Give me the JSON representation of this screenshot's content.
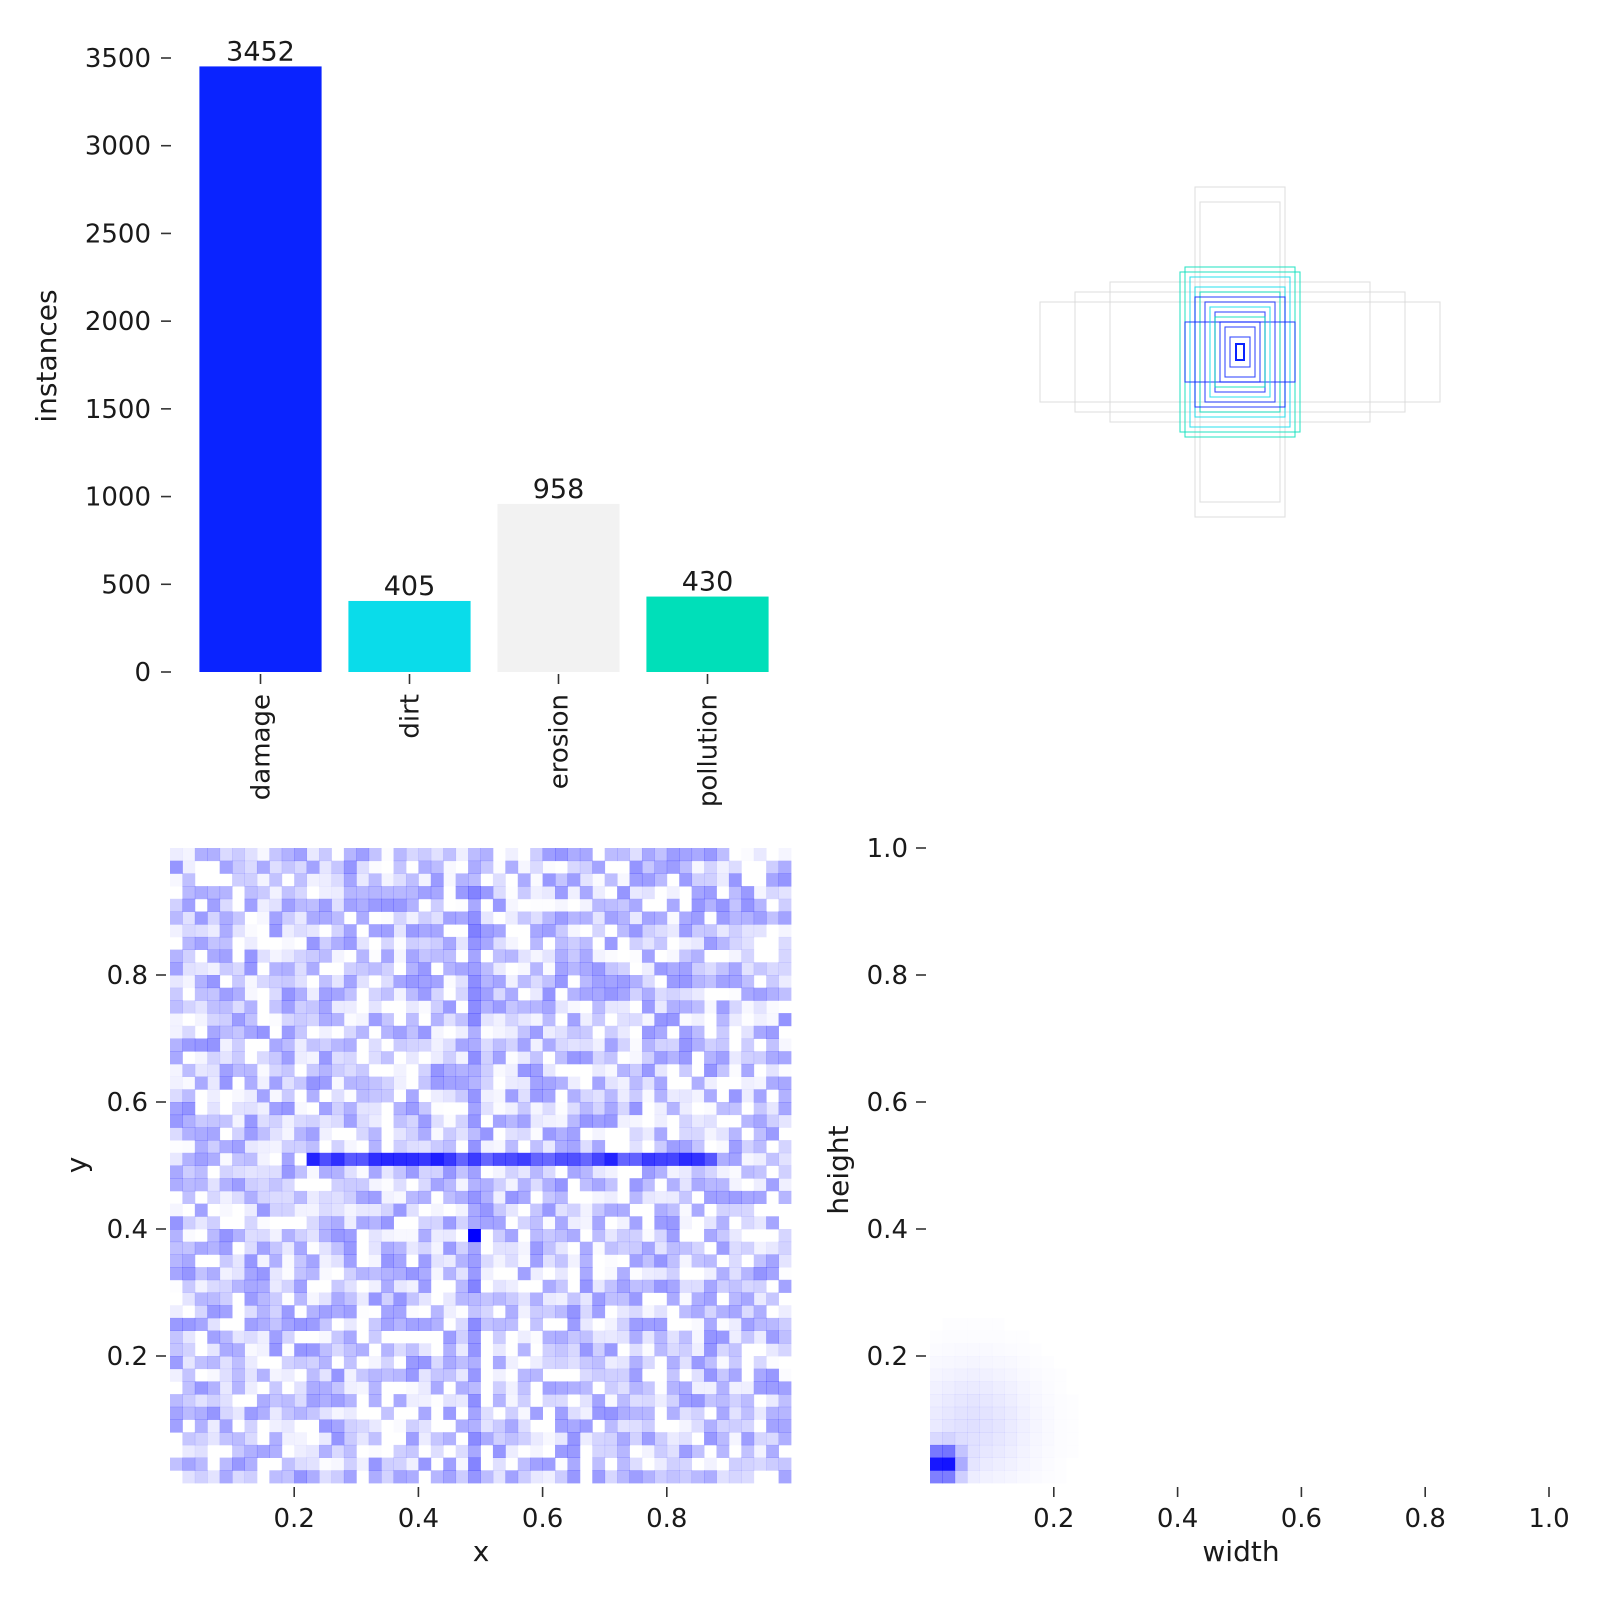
{
  "chart_data": [
    {
      "type": "bar",
      "categories": [
        "damage",
        "dirt",
        "erosion",
        "pollution"
      ],
      "values": [
        3452,
        405,
        958,
        430
      ],
      "data_labels": [
        "3452",
        "405",
        "958",
        "430"
      ],
      "colors": [
        "#0a23ff",
        "#0adcea",
        "#f2f2f2",
        "#00dfb9"
      ],
      "ylabel": "instances",
      "ylim": [
        0,
        3500
      ],
      "yticks": [
        0,
        500,
        1000,
        1500,
        2000,
        2500,
        3000,
        3500
      ],
      "ytick_labels": [
        "0",
        "500",
        "1000",
        "1500",
        "2000",
        "2500",
        "3000",
        "3500"
      ],
      "grid": false
    },
    {
      "type": "diagram",
      "description_kind": "overlaid bounding boxes centered at image center",
      "colors": [
        "#0a23ff",
        "#0adcea",
        "#f2f2f2",
        "#00dfb9"
      ],
      "boxes": [
        {
          "w": 0.4,
          "h": 0.1,
          "class": "erosion"
        },
        {
          "w": 0.33,
          "h": 0.12,
          "class": "erosion"
        },
        {
          "w": 0.26,
          "h": 0.14,
          "class": "erosion"
        },
        {
          "w": 0.09,
          "h": 0.33,
          "class": "erosion"
        },
        {
          "w": 0.08,
          "h": 0.3,
          "class": "erosion"
        },
        {
          "w": 0.12,
          "h": 0.16,
          "class": "pollution"
        },
        {
          "w": 0.11,
          "h": 0.17,
          "class": "pollution"
        },
        {
          "w": 0.1,
          "h": 0.15,
          "class": "dirt"
        },
        {
          "w": 0.09,
          "h": 0.13,
          "class": "dirt"
        },
        {
          "w": 0.08,
          "h": 0.12,
          "class": "pollution"
        },
        {
          "w": 0.09,
          "h": 0.11,
          "class": "damage"
        },
        {
          "w": 0.07,
          "h": 0.1,
          "class": "damage"
        },
        {
          "w": 0.11,
          "h": 0.06,
          "class": "damage"
        },
        {
          "w": 0.05,
          "h": 0.08,
          "class": "damage"
        },
        {
          "w": 0.04,
          "h": 0.06,
          "class": "damage"
        },
        {
          "w": 0.03,
          "h": 0.05,
          "class": "damage"
        },
        {
          "w": 0.02,
          "h": 0.03,
          "class": "damage"
        },
        {
          "w": 0.06,
          "h": 0.09,
          "class": "dirt"
        },
        {
          "w": 0.05,
          "h": 0.07,
          "class": "pollution"
        }
      ]
    },
    {
      "type": "heatmap",
      "xlabel": "x",
      "ylabel": "y",
      "xlim": [
        0,
        1
      ],
      "ylim": [
        0,
        1
      ],
      "xticks": [
        0.2,
        0.4,
        0.6,
        0.8
      ],
      "xtick_labels": [
        "0.2",
        "0.4",
        "0.6",
        "0.8"
      ],
      "yticks": [
        0.2,
        0.4,
        0.6,
        0.8
      ],
      "ytick_labels": [
        "0.2",
        "0.4",
        "0.6",
        "0.8"
      ],
      "bins": 50,
      "color": "#0000ff",
      "features": [
        {
          "kind": "horizontal-line",
          "y": 0.51,
          "x_from": 0.22,
          "x_to": 0.88,
          "intensity": 0.9
        },
        {
          "kind": "vertical-line",
          "x": 0.49,
          "y_from": 0.0,
          "y_to": 1.0,
          "intensity": 0.5
        },
        {
          "kind": "hotspot",
          "x": 0.49,
          "y": 0.39,
          "intensity": 1.0
        }
      ]
    },
    {
      "type": "heatmap",
      "xlabel": "width",
      "ylabel": "height",
      "xlim": [
        0,
        1
      ],
      "ylim": [
        0,
        1
      ],
      "xticks": [
        0.2,
        0.4,
        0.6,
        0.8,
        1.0
      ],
      "xtick_labels": [
        "0.2",
        "0.4",
        "0.6",
        "0.8",
        "1.0"
      ],
      "yticks": [
        0.2,
        0.4,
        0.6,
        0.8,
        1.0
      ],
      "ytick_labels": [
        "0.2",
        "0.4",
        "0.6",
        "0.8",
        "1.0"
      ],
      "bins": 50,
      "color": "#0000ff",
      "features": [
        {
          "kind": "hotspot",
          "x": 0.02,
          "y": 0.03,
          "intensity": 1.0
        },
        {
          "kind": "diffuse",
          "x": 0.07,
          "y": 0.09,
          "intensity": 0.12
        }
      ]
    }
  ]
}
